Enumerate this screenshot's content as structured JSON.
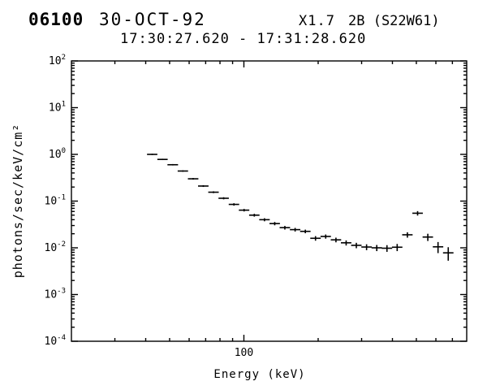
{
  "header": {
    "event_id": "06100",
    "date": "30-OCT-92",
    "goes_class": "X1.7",
    "optical_class": "2B (S22W61)",
    "time_range": "17:30:27.620 - 17:31:28.620"
  },
  "colors": {
    "foreground": "#000000",
    "background": "#ffffff"
  },
  "chart_data": {
    "type": "scatter",
    "subtype": "spectrum-with-error-bars",
    "xlabel": "Energy (keV)",
    "ylabel": "photons/sec/keV/cm²",
    "x_scale": "log",
    "y_scale": "log",
    "xlim": [
      20,
      800
    ],
    "ylim": [
      0.0001,
      100
    ],
    "grid": false,
    "legend": "none",
    "x_major_ticks": [
      100
    ],
    "x_tick_labels": [
      "100"
    ],
    "x_minor_ticks": [
      30,
      40,
      50,
      60,
      70,
      80,
      90,
      200,
      300,
      400,
      500,
      600,
      700
    ],
    "y_tick_exponents": [
      2,
      1,
      0,
      -1,
      -2,
      -3,
      -4
    ],
    "columns": [
      "e_lo_keV",
      "e_hi_keV",
      "flux",
      "flux_err"
    ],
    "points": [
      [
        40.5,
        44.6,
        1.0,
        0.03
      ],
      [
        44.6,
        49.1,
        0.78,
        0.025
      ],
      [
        49.0,
        54.1,
        0.6,
        0.02
      ],
      [
        53.9,
        59.4,
        0.44,
        0.016
      ],
      [
        59.3,
        65.4,
        0.3,
        0.012
      ],
      [
        65.2,
        71.9,
        0.21,
        0.009
      ],
      [
        71.7,
        79.1,
        0.155,
        0.007
      ],
      [
        78.9,
        86.9,
        0.115,
        0.006
      ],
      [
        86.8,
        95.7,
        0.085,
        0.005
      ],
      [
        95.4,
        105.2,
        0.064,
        0.004
      ],
      [
        105.0,
        115.7,
        0.05,
        0.0035
      ],
      [
        115.4,
        127.3,
        0.04,
        0.003
      ],
      [
        127.0,
        140.0,
        0.033,
        0.0027
      ],
      [
        139.6,
        153.9,
        0.027,
        0.0024
      ],
      [
        153.6,
        169.4,
        0.0245,
        0.0022
      ],
      [
        169.0,
        186.3,
        0.0225,
        0.002
      ],
      [
        185.8,
        204.9,
        0.016,
        0.0018
      ],
      [
        204.4,
        225.3,
        0.0175,
        0.0018
      ],
      [
        224.9,
        247.9,
        0.0148,
        0.0017
      ],
      [
        247.3,
        272.7,
        0.0128,
        0.0016
      ],
      [
        272.0,
        299.9,
        0.0113,
        0.0015
      ],
      [
        299.2,
        330.0,
        0.0104,
        0.0015
      ],
      [
        329.1,
        362.9,
        0.01,
        0.0015
      ],
      [
        362.0,
        399.1,
        0.0098,
        0.0016
      ],
      [
        398.2,
        439.0,
        0.0103,
        0.0018
      ],
      [
        438.0,
        482.9,
        0.019,
        0.0025
      ],
      [
        481.8,
        531.2,
        0.055,
        0.006
      ],
      [
        530.0,
        584.3,
        0.017,
        0.003
      ],
      [
        583.0,
        642.8,
        0.0105,
        0.0028
      ],
      [
        641.3,
        707.1,
        0.0078,
        0.0025
      ]
    ]
  }
}
